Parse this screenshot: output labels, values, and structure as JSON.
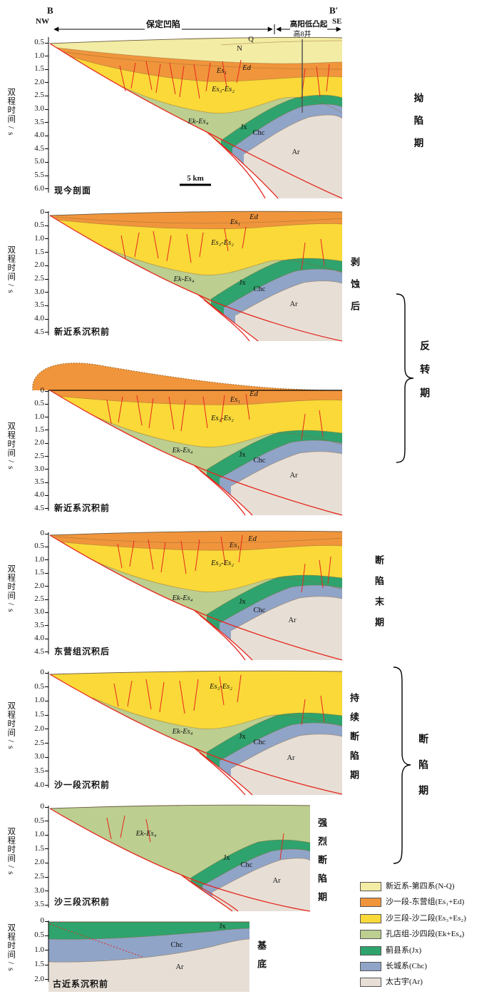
{
  "header": {
    "section_start": "B",
    "section_end": "B′",
    "dir_start": "NW",
    "dir_end": "SE",
    "zone_left": "保定凹陷",
    "zone_right": "高阳低凸起",
    "well_label": "高8井"
  },
  "axis_title": "双程时间 / s",
  "scale_bar_label": "5 km",
  "panels": [
    {
      "title": "现今剖面",
      "ticks": [
        "0.5",
        "1.0",
        "1.5",
        "2.0",
        "2.5",
        "3.0",
        "3.5",
        "4.0",
        "4.5",
        "5.0",
        "5.5",
        "6.0"
      ],
      "units": {
        "q": "Q",
        "n": "N",
        "ed": "Ed",
        "es1": "Es₁",
        "es3es2": "Es₃-Es₂",
        "ek_es4": "Ek-Es₄",
        "jx": "Jx",
        "chc": "Chc",
        "ar": "Ar"
      }
    },
    {
      "title": "新近系沉积前",
      "ticks": [
        "0",
        "0.5",
        "1.0",
        "1.5",
        "2.0",
        "2.5",
        "3.0",
        "3.5",
        "4.0",
        "4.5"
      ],
      "units": {
        "ed": "Ed",
        "es1": "Es₁",
        "es3es2": "Es₃-Es₂",
        "ek_es4": "Ek-Es₄",
        "jx": "Jx",
        "chc": "Chc",
        "ar": "Ar"
      }
    },
    {
      "title": "新近系沉积前",
      "ticks": [
        "0",
        "0.5",
        "1.0",
        "1.5",
        "2.0",
        "2.5",
        "3.0",
        "3.5",
        "4.0",
        "4.5"
      ],
      "units": {
        "ed": "Ed",
        "es1": "Es₁",
        "es3es2": "Es₃-Es₂",
        "ek_es4": "Ek-Es₄",
        "jx": "Jx",
        "chc": "Chc",
        "ar": "Ar"
      }
    },
    {
      "title": "东营组沉积后",
      "ticks": [
        "0",
        "0.5",
        "1.0",
        "1.5",
        "2.0",
        "2.5",
        "3.0",
        "3.5",
        "4.0",
        "4.5"
      ],
      "units": {
        "ed": "Ed",
        "es1": "Es₁",
        "es3es2": "Es₃-Es₂",
        "ek_es4": "Ek-Es₄",
        "jx": "Jx",
        "chc": "Chc",
        "ar": "Ar"
      }
    },
    {
      "title": "沙一段沉积前",
      "ticks": [
        "0",
        "0.5",
        "1.0",
        "1.5",
        "2.0",
        "2.5",
        "3.0",
        "3.5",
        "4.0"
      ],
      "units": {
        "es3es2": "Es₃-Es₂",
        "ek_es4": "Ek-Es₄",
        "jx": "Jx",
        "chc": "Chc",
        "ar": "Ar"
      }
    },
    {
      "title": "沙三段沉积前",
      "ticks": [
        "0",
        "0.5",
        "1.0",
        "1.5",
        "2.0",
        "2.5",
        "3.0",
        "3.5"
      ],
      "units": {
        "ek_es4": "Ek-Es₄",
        "jx": "Jx",
        "chc": "Chc",
        "ar": "Ar"
      }
    },
    {
      "title": "古近系沉积前",
      "ticks": [
        "0",
        "0.5",
        "1.0",
        "1.5",
        "2.0"
      ],
      "units": {
        "jx": "Jx",
        "chc": "Chc",
        "ar": "Ar"
      }
    }
  ],
  "stages": {
    "depression": "拗陷期",
    "post_erosion": "剥蚀后",
    "inversion": "反转期",
    "late_rift": "断陷末期",
    "sustained_rift": "持续断陷期",
    "rift": "断陷期",
    "intense_rift": "强烈断陷期",
    "basement": "基底"
  },
  "legend": {
    "items": [
      {
        "label": "新近系-第四系(N-Q)",
        "color": "#F3ECA4"
      },
      {
        "label": "沙一段-东营组(Es₁+Ed)",
        "color": "#F0953C"
      },
      {
        "label": "沙三段-沙二段(Es₃+Es₂)",
        "color": "#FAD939"
      },
      {
        "label": "孔店组-沙四段(Ek+Es₄)",
        "color": "#BCCE90"
      },
      {
        "label": "蓟县系(Jx)",
        "color": "#2FA36D"
      },
      {
        "label": "长城系(Chc)",
        "color": "#90A4C8"
      },
      {
        "label": "太古宇(Ar)",
        "color": "#E7DFD6"
      }
    ]
  }
}
